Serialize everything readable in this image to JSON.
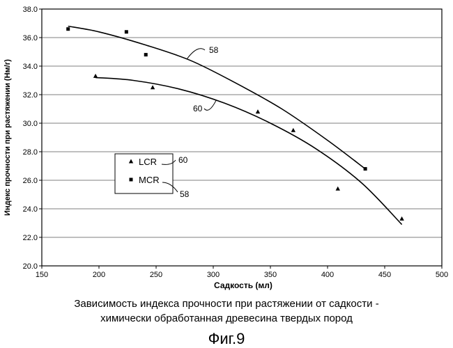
{
  "chart_data": {
    "type": "scatter",
    "title": "",
    "xlabel": "Садкость (мл)",
    "ylabel": "Индекс прочности при растяжении (Нм/г)",
    "xlim": [
      150,
      500
    ],
    "ylim": [
      20.0,
      38.0
    ],
    "x_ticks": [
      "150",
      "200",
      "250",
      "300",
      "350",
      "400",
      "450",
      "500"
    ],
    "y_ticks": [
      "20.0",
      "22.0",
      "24.0",
      "26.0",
      "28.0",
      "30.0",
      "32.0",
      "34.0",
      "36.0",
      "38.0"
    ],
    "grid": "horizontal",
    "legend_position": "center-left",
    "series": [
      {
        "name": "LCR",
        "marker": "triangle",
        "curve_label": "60",
        "x": [
          197,
          247,
          339,
          370,
          409,
          465
        ],
        "y": [
          33.3,
          32.5,
          30.8,
          29.5,
          25.4,
          23.3
        ],
        "trend_x": [
          197,
          230,
          270,
          310,
          350,
          390,
          430,
          465
        ],
        "trend_y": [
          33.2,
          33.0,
          32.4,
          31.4,
          30.0,
          28.2,
          25.8,
          22.9
        ]
      },
      {
        "name": "MCR",
        "marker": "square",
        "curve_label": "58",
        "x": [
          173,
          224,
          241,
          433
        ],
        "y": [
          36.6,
          36.4,
          34.8,
          26.8
        ],
        "trend_x": [
          173,
          200,
          240,
          280,
          320,
          360,
          400,
          433
        ],
        "trend_y": [
          36.8,
          36.4,
          35.5,
          34.4,
          32.8,
          31.0,
          28.8,
          26.8
        ]
      }
    ],
    "legend_callouts": [
      "60",
      "58"
    ]
  },
  "caption": {
    "line1": "Зависимость индекса прочности при растяжении от садкости -",
    "line2": "химически обработанная древесина твердых пород",
    "figure_label": "Фиг.9"
  }
}
